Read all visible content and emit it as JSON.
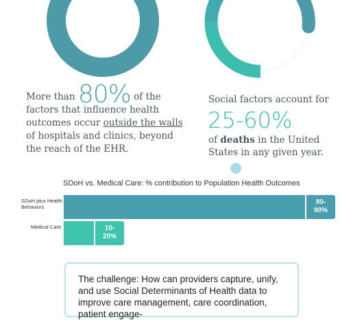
{
  "left_stat": {
    "prefix": "More than",
    "big": "80%",
    "text1": "of the factors that influence health outcomes occur",
    "underlined": "outside the walls",
    "text2": "of hospitals and clinics, beyond the reach of the EHR."
  },
  "right_stat": {
    "line1": "Social factors account for",
    "big": "25-60%",
    "of": "of",
    "bold": "deaths",
    "rest": "in the United States in any given year."
  },
  "donuts": {
    "left": {
      "value_percent": 80,
      "color": "#4d9aa8"
    },
    "right": {
      "value_percent": 60,
      "colors": [
        "#3dbcb0",
        "#4d9aa8"
      ]
    }
  },
  "chart_data": {
    "type": "bar",
    "title": "SDoH vs. Medical Care: % contribution to Population Health Outcomes",
    "categories": [
      "SDoH plus Health Behaviors",
      "Medical Care"
    ],
    "value_labels": [
      "80-90%",
      "10-20%"
    ],
    "series": [
      {
        "values": [
          80,
          10
        ],
        "colors": [
          "#4a9fae",
          "#3dc3ae"
        ]
      },
      {
        "values": [
          10,
          10
        ],
        "colors": [
          "#4a9fae",
          "#3dc3ae"
        ]
      }
    ],
    "xlim": [
      0,
      100
    ]
  },
  "challenge": {
    "text": "The challenge: How can providers capture, unify, and use Social Determinants of Health data to improve care management, care coordination, patient engage-"
  }
}
